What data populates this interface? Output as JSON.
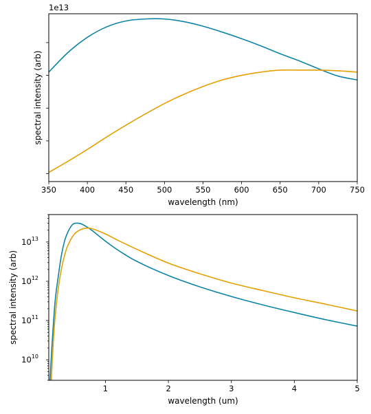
{
  "chart_data": [
    {
      "type": "line",
      "xlabel": "wavelength (nm)",
      "ylabel": "spectral intensity (arb)",
      "offset_label": "1e13",
      "xlim": [
        350,
        750
      ],
      "ylim": [
        0.88,
        3.44
      ],
      "xticks": [
        350,
        400,
        450,
        500,
        550,
        600,
        650,
        700,
        750
      ],
      "yticks": [
        1.0,
        1.5,
        2.0,
        2.5,
        3.0
      ],
      "grid": false,
      "series": [
        {
          "color": "#0c84a6",
          "x": [
            350,
            375,
            400,
            425,
            450,
            475,
            500,
            525,
            550,
            575,
            600,
            625,
            650,
            675,
            700,
            725,
            750
          ],
          "y": [
            2.55,
            2.85,
            3.08,
            3.24,
            3.33,
            3.36,
            3.36,
            3.32,
            3.25,
            3.16,
            3.06,
            2.95,
            2.83,
            2.72,
            2.6,
            2.49,
            2.43
          ]
        },
        {
          "color": "#e69f00",
          "x": [
            350,
            375,
            400,
            425,
            450,
            475,
            500,
            525,
            550,
            575,
            600,
            625,
            650,
            675,
            700,
            725,
            750
          ],
          "y": [
            1.02,
            1.19,
            1.37,
            1.56,
            1.74,
            1.91,
            2.07,
            2.21,
            2.33,
            2.43,
            2.5,
            2.55,
            2.58,
            2.58,
            2.58,
            2.57,
            2.55
          ]
        }
      ]
    },
    {
      "type": "line",
      "xlabel": "wavelength (um)",
      "ylabel": "spectral intensity (arb)",
      "xlim": [
        0.1,
        5
      ],
      "ylim": [
        3000000000.0,
        50000000000000.0
      ],
      "yscale": "log",
      "xticks": [
        1,
        2,
        3,
        4,
        5
      ],
      "yticks": [
        10000000000.0,
        100000000000.0,
        1000000000000.0,
        10000000000000.0
      ],
      "ytick_labels": [
        "10^10",
        "10^11",
        "10^12",
        "10^13"
      ],
      "grid": false,
      "series": [
        {
          "color": "#0c84a6",
          "x": [
            0.12,
            0.15,
            0.2,
            0.25,
            0.3,
            0.35,
            0.4,
            0.45,
            0.5,
            0.6,
            0.7,
            0.8,
            1.0,
            1.2,
            1.5,
            2.0,
            2.5,
            3.0,
            3.5,
            4.0,
            4.5,
            5.0
          ],
          "y": [
            3000000000.0,
            22000000000.0,
            300000000000.0,
            1300000000000.0,
            4500000000000.0,
            10500000000000.0,
            17500000000000.0,
            24500000000000.0,
            29500000000000.0,
            29500000000000.0,
            24500000000000.0,
            19000000000000.0,
            10500000000000.0,
            6200000000000.0,
            3200000000000.0,
            1400000000000.0,
            720000000000.0,
            410000000000.0,
            250000000000.0,
            160000000000.0,
            105000000000.0,
            72000000000.0
          ]
        },
        {
          "color": "#e69f00",
          "x": [
            0.14,
            0.17,
            0.2,
            0.25,
            0.3,
            0.35,
            0.4,
            0.5,
            0.6,
            0.7,
            0.8,
            1.0,
            1.2,
            1.5,
            2.0,
            2.5,
            3.0,
            3.5,
            4.0,
            4.5,
            5.0
          ],
          "y": [
            3000000000.0,
            25000000000.0,
            120000000000.0,
            650000000000.0,
            2000000000000.0,
            4500000000000.0,
            8000000000000.0,
            15500000000000.0,
            20500000000000.0,
            22500000000000.0,
            21500000000000.0,
            16000000000000.0,
            11000000000000.0,
            6500000000000.0,
            2900000000000.0,
            1550000000000.0,
            900000000000.0,
            580000000000.0,
            380000000000.0,
            260000000000.0,
            175000000000.0
          ]
        }
      ]
    }
  ]
}
